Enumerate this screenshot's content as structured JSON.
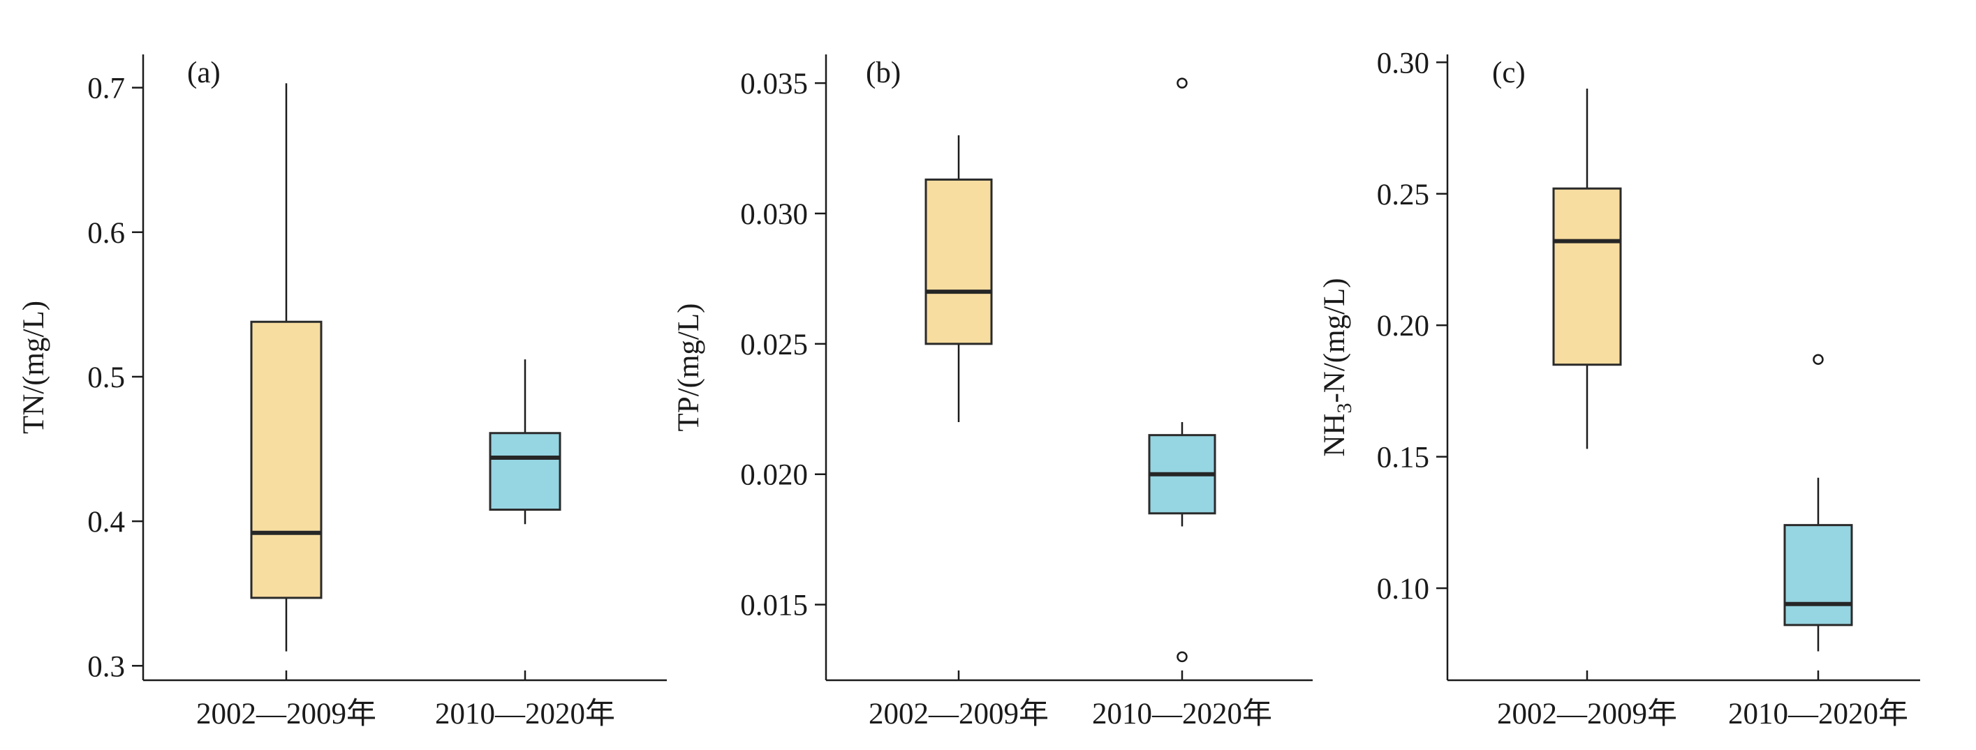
{
  "chart_data": [
    {
      "type": "box",
      "panel_label": "(a)",
      "ylabel": "TN/(mg/L)",
      "ylim": [
        0.29,
        0.723
      ],
      "yticks": [
        "0.3",
        "0.4",
        "0.5",
        "0.6",
        "0.7"
      ],
      "categories": [
        "2002—2009年",
        "2010—2020年"
      ],
      "boxes": [
        {
          "whisker_low": 0.31,
          "q1": 0.347,
          "median": 0.392,
          "q3": 0.538,
          "whisker_high": 0.703,
          "outliers": [],
          "color": "#f7dda0"
        },
        {
          "whisker_low": 0.398,
          "q1": 0.408,
          "median": 0.444,
          "q3": 0.461,
          "whisker_high": 0.512,
          "outliers": [],
          "color": "#96d5e2"
        }
      ]
    },
    {
      "type": "box",
      "panel_label": "(b)",
      "ylabel": "TP/(mg/L)",
      "ylim": [
        0.0121,
        0.0361
      ],
      "yticks": [
        "0.015",
        "0.020",
        "0.025",
        "0.030",
        "0.035"
      ],
      "categories": [
        "2002—2009年",
        "2010—2020年"
      ],
      "boxes": [
        {
          "whisker_low": 0.022,
          "q1": 0.025,
          "median": 0.027,
          "q3": 0.0313,
          "whisker_high": 0.033,
          "outliers": [],
          "color": "#f7dda0"
        },
        {
          "whisker_low": 0.018,
          "q1": 0.0185,
          "median": 0.02,
          "q3": 0.0215,
          "whisker_high": 0.022,
          "outliers": [
            0.035,
            0.013
          ],
          "color": "#96d5e2"
        }
      ]
    },
    {
      "type": "box",
      "panel_label": "(c)",
      "ylabel": "NH₃-N/(mg/L)",
      "ylabel_parts": {
        "prefix": "NH",
        "sub": "3",
        "suffix": "-N/(mg/L)"
      },
      "ylim": [
        0.065,
        0.303
      ],
      "yticks": [
        "0.10",
        "0.15",
        "0.20",
        "0.25",
        "0.30"
      ],
      "categories": [
        "2002—2009年",
        "2010—2020年"
      ],
      "boxes": [
        {
          "whisker_low": 0.153,
          "q1": 0.185,
          "median": 0.232,
          "q3": 0.252,
          "whisker_high": 0.29,
          "outliers": [],
          "color": "#f7dda0"
        },
        {
          "whisker_low": 0.076,
          "q1": 0.086,
          "median": 0.094,
          "q3": 0.124,
          "whisker_high": 0.142,
          "outliers": [
            0.187
          ],
          "color": "#96d5e2"
        }
      ]
    }
  ]
}
